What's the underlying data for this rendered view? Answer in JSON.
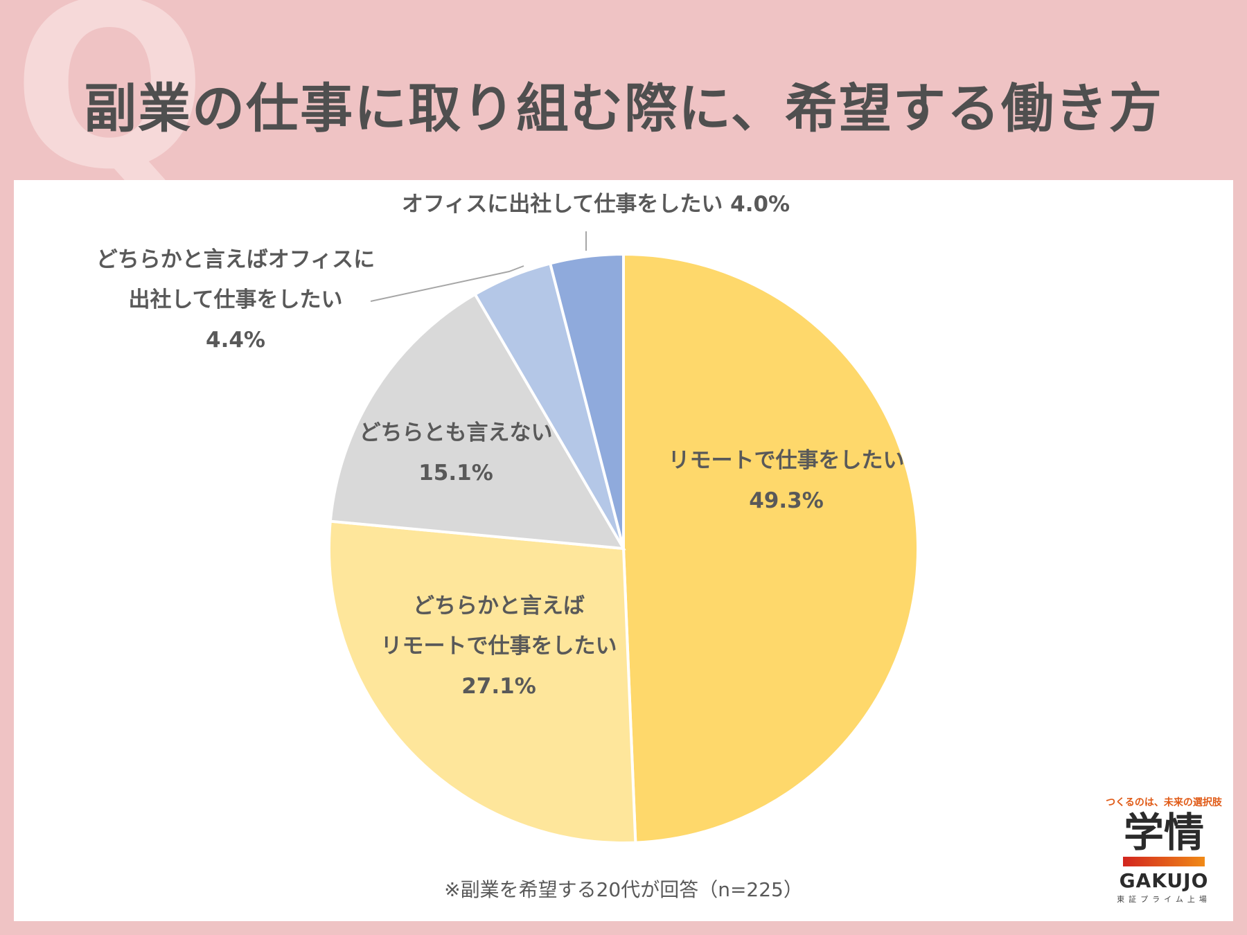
{
  "page": {
    "title": "副業の仕事に取り組む際に、希望する働き方",
    "q_mark": "Q",
    "note": "※副業を希望する20代が回答（n=225）"
  },
  "logo": {
    "tagline": "つくるのは、未来の選択肢",
    "kanji": "学情",
    "latin": "GAKUJO",
    "sub": "東証プライム上場"
  },
  "colors": {
    "background": "#efc3c4",
    "panel": "#ffffff",
    "title": "#4f4f4f"
  },
  "chart_data": {
    "type": "pie",
    "start": "12 o'clock",
    "direction": "clockwise",
    "slices": [
      {
        "label_lines": [
          "リモートで仕事をしたい"
        ],
        "value_text": "49.3%",
        "value": 49.3,
        "color": "#fed86b"
      },
      {
        "label_lines": [
          "どちらかと言えば",
          "リモートで仕事をしたい"
        ],
        "value_text": "27.1%",
        "value": 27.1,
        "color": "#fee69b"
      },
      {
        "label_lines": [
          "どちらとも言えない"
        ],
        "value_text": "15.1%",
        "value": 15.1,
        "color": "#d9d9d9"
      },
      {
        "label_lines": [
          "どちらかと言えばオフィスに",
          "出社して仕事をしたい"
        ],
        "value_text": "4.4%",
        "value": 4.4,
        "color": "#b4c7e7"
      },
      {
        "label_lines": [
          "オフィスに出社して仕事をしたい 4.0%"
        ],
        "value_text": "",
        "value": 4.0,
        "color": "#8faadc"
      }
    ]
  }
}
